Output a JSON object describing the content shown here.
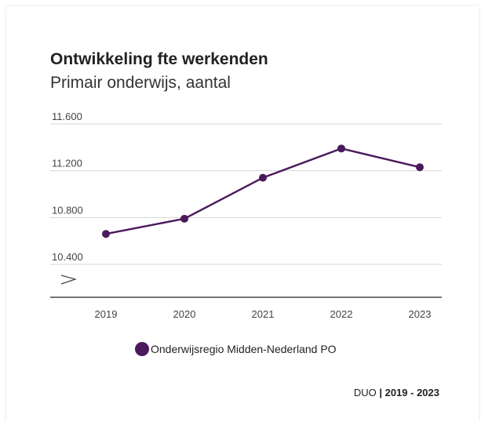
{
  "chart_data": {
    "type": "line",
    "title": "Ontwikkeling fte werkenden",
    "subtitle": "Primair onderwijs, aantal",
    "xlabel": "",
    "ylabel": "",
    "x": [
      "2019",
      "2020",
      "2021",
      "2022",
      "2023"
    ],
    "ylim": [
      10400,
      11600
    ],
    "y_ticks": [
      {
        "value": 10400,
        "label": "10.400"
      },
      {
        "value": 10800,
        "label": "10.800"
      },
      {
        "value": 11200,
        "label": "11.200"
      },
      {
        "value": 11600,
        "label": "11.600"
      }
    ],
    "axis_break": true,
    "grid": true,
    "legend": "bottom",
    "series": [
      {
        "name": "Onderwijsregio Midden-Nederland PO",
        "color": "#4a1a5c",
        "values": [
          10660,
          10790,
          11140,
          11390,
          11230
        ]
      }
    ]
  },
  "source": {
    "label": "DUO",
    "separator": "|",
    "period": "2019 - 2023"
  }
}
